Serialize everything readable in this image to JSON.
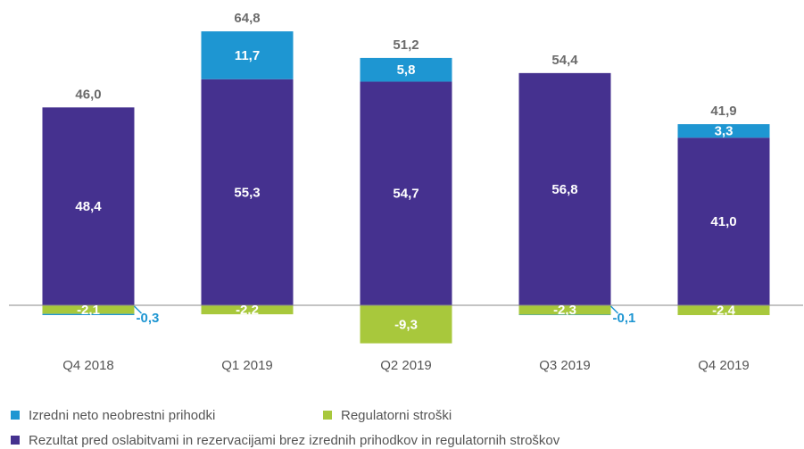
{
  "chart_data": {
    "type": "stacked-bar",
    "categories": [
      "Q4 2018",
      "Q1 2019",
      "Q2 2019",
      "Q3 2019",
      "Q4 2019"
    ],
    "series": [
      {
        "name": "Izredni neto neobrestni prihodki",
        "color": "#1e96d2",
        "values": [
          -0.3,
          11.7,
          5.8,
          -0.1,
          3.3
        ],
        "value_labels": [
          "-0,3",
          "11,7",
          "5,8",
          "-0,1",
          "3,3"
        ]
      },
      {
        "name": "Regulatorni stroški",
        "color": "#a8c83c",
        "values": [
          -2.1,
          -2.2,
          -9.3,
          -2.3,
          -2.4
        ],
        "value_labels": [
          "-2,1",
          "-2,2",
          "-9,3",
          "-2,3",
          "-2,4"
        ]
      },
      {
        "name": "Rezultat pred oslabitvami in rezervacijami brez izrednih prihodkov in regulatornih stroškov",
        "color": "#45318f",
        "values": [
          48.4,
          55.3,
          54.7,
          56.8,
          41.0
        ],
        "value_labels": [
          "48,4",
          "55,3",
          "54,7",
          "56,8",
          "41,0"
        ]
      }
    ],
    "totals": {
      "values": [
        46.0,
        64.8,
        51.2,
        54.4,
        41.9
      ],
      "value_labels": [
        "46,0",
        "64,8",
        "51,2",
        "54,4",
        "41,9"
      ]
    },
    "ylim": [
      -10,
      70
    ]
  }
}
